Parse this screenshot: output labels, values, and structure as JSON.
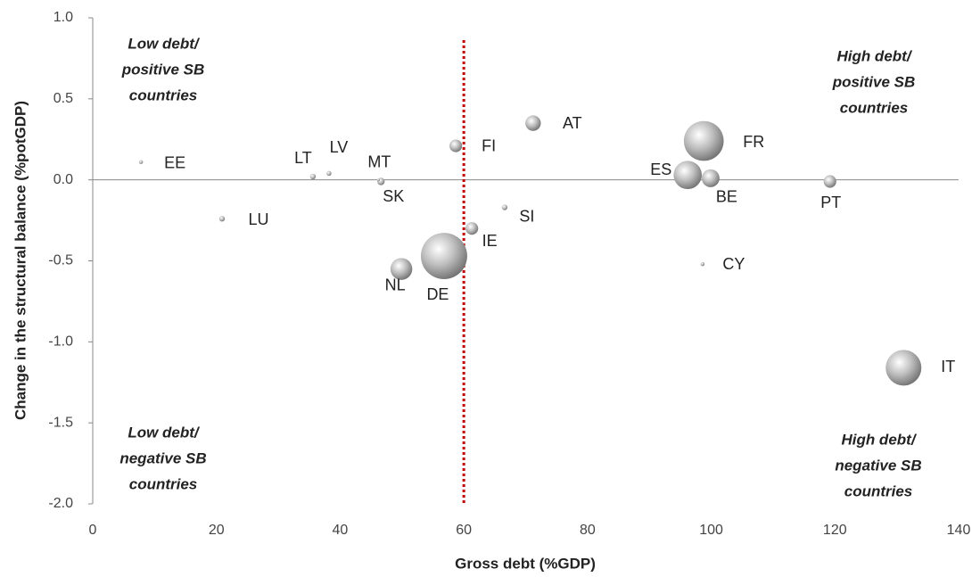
{
  "chart_data": {
    "type": "bubble",
    "x_label": "Gross debt (%GDP)",
    "y_label": "Change in the structural balance (%potGDP)",
    "labels": [
      "EE",
      "LT",
      "LV",
      "MT",
      "SK",
      "LU",
      "FI",
      "AT",
      "SI",
      "IE",
      "DE",
      "NL",
      "FR",
      "ES",
      "BE",
      "PT",
      "CY",
      "IT"
    ],
    "x": [
      7.8,
      35.6,
      38.2,
      46.2,
      46.6,
      20.9,
      58.7,
      71.2,
      66.6,
      61.3,
      56.8,
      49.9,
      98.8,
      96.2,
      99.9,
      119.2,
      98.6,
      131.1
    ],
    "values": [
      0.11,
      0.02,
      0.04,
      0.0,
      -0.01,
      -0.24,
      0.21,
      0.35,
      -0.17,
      -0.3,
      -0.47,
      -0.55,
      0.24,
      0.03,
      0.01,
      -0.01,
      -0.52,
      -1.16
    ],
    "sizes": [
      0.2,
      0.4,
      0.3,
      0.1,
      0.7,
      0.4,
      2,
      3,
      0.4,
      2,
      27,
      6,
      20,
      10,
      4,
      2,
      0.2,
      16
    ],
    "xlim": [
      0,
      140
    ],
    "xticks": [
      0,
      20,
      40,
      60,
      80,
      100,
      120,
      140
    ],
    "ylim": [
      -2,
      1
    ],
    "yticks": [
      {
        "value": -2,
        "label": "-2.0"
      },
      -1.5,
      {
        "value": -1,
        "label": "-1.0"
      },
      -0.5,
      {
        "value": 0,
        "label": "0.0"
      },
      0.5,
      {
        "value": 1,
        "label": "1.0"
      }
    ],
    "reference_line": {
      "x": 60,
      "color": "#c00000"
    },
    "annotations": [
      [
        "Low debt/",
        "positive SB",
        "countries"
      ],
      [
        "High debt/",
        "positive SB",
        "countries"
      ],
      [
        "Low debt/",
        "negative SB",
        "countries"
      ],
      [
        "High debt/",
        "negative SB",
        "countries"
      ]
    ]
  }
}
